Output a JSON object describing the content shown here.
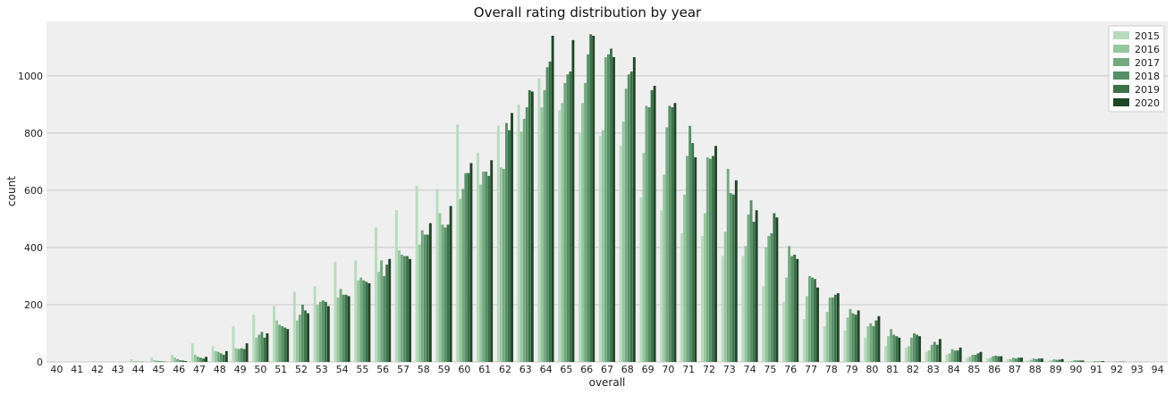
{
  "chart_data": {
    "type": "bar",
    "title": "Overall rating distribution by year",
    "xlabel": "overall",
    "ylabel": "count",
    "ylim": [
      0,
      1190
    ],
    "yticks": [
      0,
      200,
      400,
      600,
      800,
      1000
    ],
    "grid": "horizontal",
    "legend_position": "top-right",
    "categories": [
      "40",
      "41",
      "42",
      "43",
      "44",
      "45",
      "46",
      "47",
      "48",
      "49",
      "50",
      "51",
      "52",
      "53",
      "54",
      "55",
      "56",
      "57",
      "58",
      "59",
      "60",
      "61",
      "62",
      "63",
      "64",
      "65",
      "66",
      "67",
      "68",
      "69",
      "70",
      "71",
      "72",
      "73",
      "74",
      "75",
      "76",
      "77",
      "78",
      "79",
      "80",
      "81",
      "82",
      "83",
      "84",
      "85",
      "86",
      "87",
      "88",
      "89",
      "90",
      "91",
      "92",
      "93",
      "94"
    ],
    "series": [
      {
        "name": "2015",
        "color": "#b8dbbe",
        "values": [
          2,
          0,
          0,
          0,
          10,
          15,
          25,
          65,
          55,
          125,
          165,
          195,
          245,
          265,
          350,
          355,
          470,
          530,
          615,
          605,
          830,
          730,
          825,
          900,
          990,
          880,
          800,
          790,
          755,
          575,
          530,
          450,
          440,
          370,
          370,
          265,
          210,
          150,
          125,
          110,
          85,
          55,
          50,
          35,
          25,
          15,
          12,
          10,
          6,
          5,
          3,
          2,
          1,
          1,
          0
        ]
      },
      {
        "name": "2016",
        "color": "#96c69d",
        "values": [
          1,
          0,
          0,
          0,
          3,
          6,
          15,
          25,
          38,
          48,
          85,
          145,
          145,
          200,
          225,
          285,
          315,
          390,
          410,
          520,
          570,
          620,
          680,
          805,
          890,
          905,
          905,
          810,
          840,
          730,
          655,
          585,
          520,
          455,
          405,
          400,
          295,
          230,
          175,
          155,
          125,
          90,
          55,
          40,
          30,
          18,
          14,
          10,
          7,
          5,
          3,
          1,
          1,
          0,
          0
        ]
      },
      {
        "name": "2017",
        "color": "#74a97f",
        "values": [
          0,
          0,
          0,
          0,
          2,
          4,
          10,
          18,
          35,
          45,
          95,
          130,
          165,
          210,
          255,
          295,
          355,
          375,
          460,
          480,
          605,
          665,
          675,
          850,
          950,
          975,
          975,
          1065,
          955,
          895,
          820,
          720,
          715,
          675,
          515,
          440,
          405,
          300,
          225,
          185,
          135,
          115,
          85,
          60,
          45,
          25,
          20,
          15,
          12,
          9,
          6,
          3,
          1,
          1,
          0
        ]
      },
      {
        "name": "2018",
        "color": "#569066",
        "values": [
          0,
          0,
          0,
          0,
          1,
          3,
          6,
          15,
          30,
          48,
          105,
          125,
          200,
          215,
          235,
          285,
          300,
          370,
          445,
          470,
          660,
          665,
          835,
          890,
          1030,
          1005,
          1075,
          1075,
          1005,
          890,
          895,
          825,
          710,
          590,
          565,
          450,
          370,
          295,
          225,
          170,
          125,
          95,
          100,
          70,
          40,
          25,
          22,
          12,
          10,
          7,
          5,
          2,
          1,
          0,
          0
        ]
      },
      {
        "name": "2019",
        "color": "#3b7249",
        "values": [
          0,
          0,
          0,
          0,
          1,
          2,
          5,
          12,
          25,
          45,
          85,
          120,
          180,
          210,
          235,
          280,
          340,
          370,
          445,
          480,
          660,
          650,
          810,
          950,
          1050,
          1015,
          1145,
          1095,
          1015,
          950,
          890,
          765,
          720,
          585,
          490,
          520,
          375,
          290,
          235,
          165,
          145,
          90,
          95,
          60,
          40,
          30,
          20,
          15,
          12,
          8,
          5,
          2,
          1,
          0,
          0
        ]
      },
      {
        "name": "2020",
        "color": "#1f4626",
        "values": [
          0,
          0,
          0,
          0,
          0,
          1,
          3,
          18,
          38,
          65,
          100,
          115,
          170,
          195,
          230,
          275,
          360,
          360,
          485,
          545,
          695,
          705,
          870,
          945,
          1140,
          1125,
          1140,
          1065,
          1065,
          965,
          905,
          715,
          755,
          635,
          530,
          505,
          360,
          260,
          240,
          180,
          160,
          85,
          90,
          80,
          50,
          35,
          20,
          15,
          12,
          10,
          5,
          3,
          1,
          0,
          0
        ]
      }
    ]
  }
}
